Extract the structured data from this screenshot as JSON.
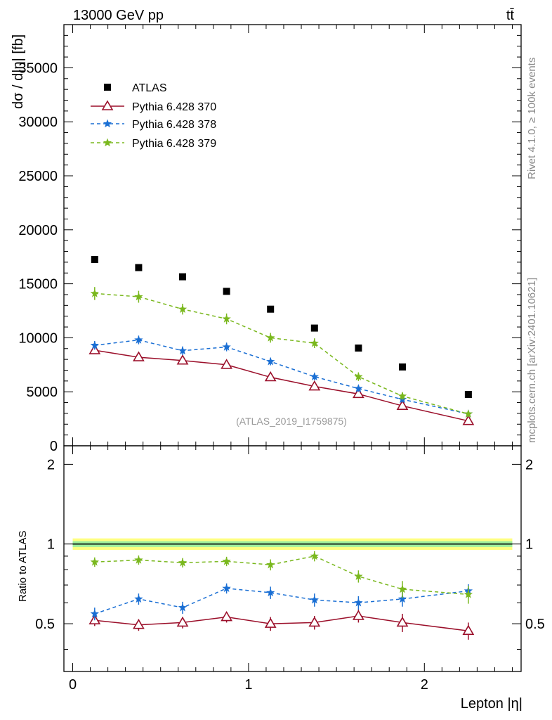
{
  "header": {
    "energy_label": "13000 GeV pp",
    "process_label": "tt̄",
    "side_label_top": "Rivet 4.1.0, ≥ 100k events",
    "side_label_bottom": "mcplots.cern.ch [arXiv:2401.10621]",
    "analysis_label": "(ATLAS_2019_I1759875)"
  },
  "colors": {
    "data": "#000000",
    "py370": "#9b0f2a",
    "py378": "#1a6fd4",
    "py379": "#7ab81e",
    "band_outer": "#ffff80",
    "band_inner": "#9ef09e"
  },
  "chart_data": [
    {
      "type": "scatter",
      "panel": "main",
      "title": "",
      "xlabel": "Lepton |η|",
      "ylabel": "dσ / d|η| [fb]",
      "xlim": [
        -0.05,
        2.55
      ],
      "ylim": [
        0,
        39000
      ],
      "yticks": [
        0,
        5000,
        10000,
        15000,
        20000,
        25000,
        30000,
        35000
      ],
      "ytick_labels": [
        "0",
        "5000",
        "10000",
        "15000",
        "20000",
        "25000",
        "30000",
        "35000"
      ],
      "x": [
        0.125,
        0.375,
        0.625,
        0.875,
        1.125,
        1.375,
        1.625,
        1.875,
        2.25
      ],
      "series": [
        {
          "name": "ATLAS",
          "style": "marker",
          "values": [
            17250,
            16500,
            15650,
            14300,
            12650,
            10900,
            9050,
            7300,
            4750
          ]
        },
        {
          "name": "Pythia 6.428 370",
          "style": "solid",
          "values": [
            8850,
            8200,
            7900,
            7500,
            6350,
            5500,
            4800,
            3700,
            2300
          ],
          "errors": [
            250,
            250,
            250,
            250,
            250,
            250,
            250,
            300,
            250
          ]
        },
        {
          "name": "Pythia 6.428 378",
          "style": "dashed",
          "values": [
            9300,
            9800,
            8800,
            9150,
            7800,
            6400,
            5300,
            4300,
            2950
          ],
          "errors": [
            400,
            400,
            400,
            400,
            350,
            350,
            300,
            300,
            250
          ]
        },
        {
          "name": "Pythia 6.428 379",
          "style": "dashed",
          "values": [
            14100,
            13800,
            12650,
            11750,
            10000,
            9500,
            6400,
            4600,
            2950
          ],
          "errors": [
            600,
            550,
            500,
            500,
            450,
            450,
            400,
            350,
            300
          ]
        }
      ],
      "legend": [
        "ATLAS",
        "Pythia 6.428 370",
        "Pythia 6.428 378",
        "Pythia 6.428 379"
      ]
    },
    {
      "type": "line",
      "panel": "ratio",
      "ylabel": "Ratio to ATLAS",
      "xlim": [
        -0.05,
        2.55
      ],
      "ylim": [
        0.33,
        2.35
      ],
      "yticks": [
        0.5,
        1,
        2
      ],
      "ytick_labels": [
        "0.5",
        "1",
        "2"
      ],
      "xticks": [
        0,
        1,
        2
      ],
      "xtick_labels": [
        "0",
        "1",
        "2"
      ],
      "x": [
        0.125,
        0.375,
        0.625,
        0.875,
        1.125,
        1.375,
        1.625,
        1.875,
        2.25
      ],
      "band_outer": 0.05,
      "band_inner": 0.025,
      "series": [
        {
          "name": "Pythia 6.428 370",
          "style": "solid",
          "values": [
            0.515,
            0.495,
            0.505,
            0.53,
            0.5,
            0.505,
            0.535,
            0.505,
            0.47
          ],
          "errors": [
            0.025,
            0.025,
            0.025,
            0.025,
            0.03,
            0.03,
            0.03,
            0.04,
            0.035
          ]
        },
        {
          "name": "Pythia 6.428 378",
          "style": "dashed",
          "values": [
            0.545,
            0.62,
            0.575,
            0.68,
            0.655,
            0.615,
            0.6,
            0.62,
            0.665
          ],
          "errors": [
            0.03,
            0.03,
            0.03,
            0.03,
            0.035,
            0.035,
            0.035,
            0.04,
            0.04
          ]
        },
        {
          "name": "Pythia 6.428 379",
          "style": "dashed",
          "values": [
            0.855,
            0.87,
            0.85,
            0.86,
            0.835,
            0.9,
            0.755,
            0.675,
            0.645
          ],
          "errors": [
            0.035,
            0.035,
            0.035,
            0.035,
            0.04,
            0.04,
            0.04,
            0.05,
            0.05
          ]
        }
      ]
    }
  ]
}
